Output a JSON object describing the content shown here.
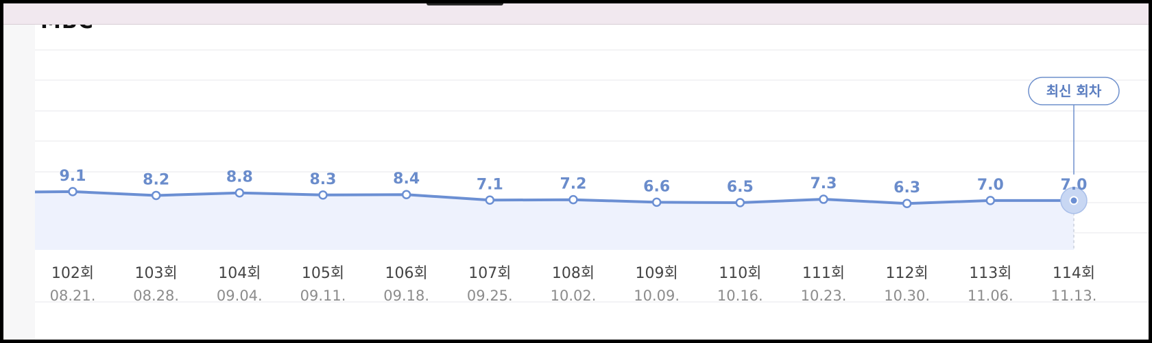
{
  "section": {
    "title": "MBC"
  },
  "badge": {
    "label": "최신 회차"
  },
  "colors": {
    "line": "#6b8fd3",
    "fill": "#eef2fd",
    "label": "#6a8ccb",
    "grid": "#ececef"
  },
  "chart_data": {
    "type": "line",
    "title": "",
    "xlabel": "",
    "ylabel": "",
    "grid": true,
    "categories": [
      "102회",
      "103회",
      "104회",
      "105회",
      "106회",
      "107회",
      "108회",
      "109회",
      "110회",
      "111회",
      "112회",
      "113회",
      "114회"
    ],
    "dates": [
      "08.21.",
      "08.28.",
      "09.04.",
      "09.11.",
      "09.18.",
      "09.25.",
      "10.02.",
      "10.09.",
      "10.16.",
      "10.23.",
      "10.30.",
      "11.06.",
      "11.13."
    ],
    "values": [
      9.1,
      8.2,
      8.8,
      8.3,
      8.4,
      7.1,
      7.2,
      6.6,
      6.5,
      7.3,
      6.3,
      7.0,
      7.0
    ],
    "value_labels": [
      "9.1",
      "8.2",
      "8.8",
      "8.3",
      "8.4",
      "7.1",
      "7.2",
      "6.6",
      "6.5",
      "7.3",
      "6.3",
      "7.0",
      "7.0"
    ],
    "highlight_index": 12
  }
}
